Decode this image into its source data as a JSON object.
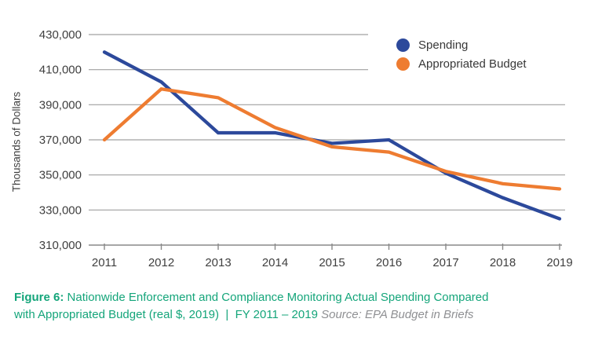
{
  "caption": {
    "label": "Figure 6:",
    "line1": "Nationwide Enforcement and Compliance Monitoring Actual Spending Compared",
    "line2": "with Appropriated Budget (real $, 2019)  |  FY 2011 – 2019",
    "source": "Source: EPA Budget in Briefs"
  },
  "colors": {
    "spending_blue": "#2c499b",
    "appropriated_orange": "#ee7c31",
    "gridline_gray": "#a0a0a0",
    "axis_line_gray": "#898989",
    "axis_text_gray": "#3f3f3f",
    "caption_green": "#14a57a",
    "source_gray": "#8f9093"
  },
  "chart_data": {
    "type": "line",
    "title": "",
    "xlabel": "",
    "ylabel": "Thousands of Dollars",
    "x": [
      2011,
      2012,
      2013,
      2014,
      2015,
      2016,
      2017,
      2018,
      2019
    ],
    "series": [
      {
        "name": "Spending",
        "color": "#2c499b",
        "values": [
          420000,
          403000,
          374000,
          374000,
          368000,
          370000,
          351000,
          337000,
          325000
        ]
      },
      {
        "name": "Appropriated Budget",
        "color": "#ee7c31",
        "values": [
          370000,
          399000,
          394000,
          377000,
          366000,
          363000,
          352000,
          345000,
          342000
        ]
      }
    ],
    "ylim": [
      310000,
      430000
    ],
    "ytick_step": 20000,
    "grid": true,
    "legend_position": "top-right"
  }
}
